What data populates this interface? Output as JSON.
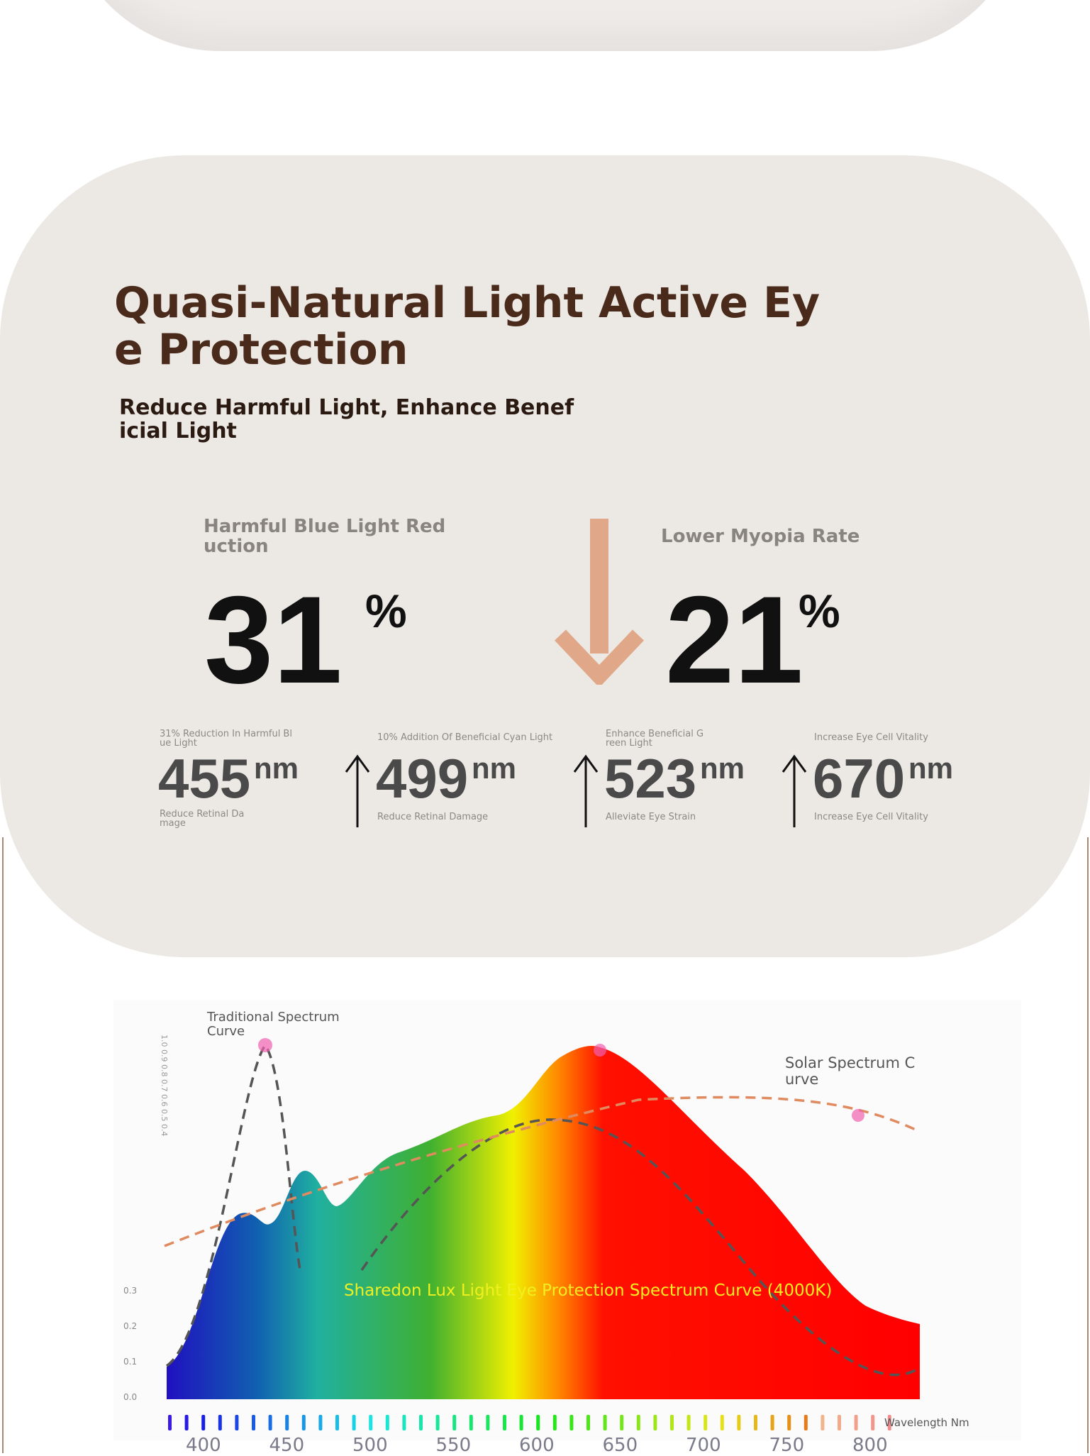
{
  "header": {
    "title_line1": "Quasi-Natural Light Active Ey",
    "title_line2": "e Protection",
    "subtitle_line1": "Reduce Harmful Light, Enhance Benef",
    "subtitle_line2": "icial Light"
  },
  "stats": [
    {
      "label_line1": "Harmful Blue Light Red",
      "label_line2": "uction",
      "number": "31",
      "unit": "%"
    },
    {
      "label_line1": "Lower Myopia Rate",
      "number": "21",
      "unit": "%"
    }
  ],
  "wavelengths": [
    {
      "top_line1": "31% Reduction In Harmful Bl",
      "top_line2": "ue Light",
      "number": "455",
      "unit": "nm",
      "bottom_line1": "Reduce Retinal Da",
      "bottom_line2": "mage"
    },
    {
      "top_line1": "10% Addition Of Beneficial Cyan Light",
      "number": "499",
      "unit": "nm",
      "bottom_line1": "Reduce Retinal Damage"
    },
    {
      "top_line1": "Enhance Beneficial G",
      "top_line2": "reen Light",
      "number": "523",
      "unit": "nm",
      "bottom_line1": "Alleviate Eye Strain"
    },
    {
      "top_line1": "Increase Eye Cell Vitality",
      "number": "670",
      "unit": "nm",
      "bottom_line1": "Increase Eye Cell Vitality"
    }
  ],
  "spectrum": {
    "traditional_line1": "Traditional Spectrum",
    "traditional_line2": "Curve",
    "solar_line1": "Solar Spectrum C",
    "solar_line2": "urve",
    "caption": "Sharedon Lux Light Eye Protection Spectrum Curve (4000K)",
    "rotated_scale": "1.0 0.9 0.8 0.7 0.6 0.5 0.4",
    "y_labels": [
      "0.3",
      "0.2",
      "0.1",
      "0.0"
    ],
    "x_labels": [
      "400",
      "450",
      "500",
      "550",
      "600",
      "650",
      "700",
      "750",
      "800"
    ],
    "x_axis_label": "Wavelength Nm"
  }
}
